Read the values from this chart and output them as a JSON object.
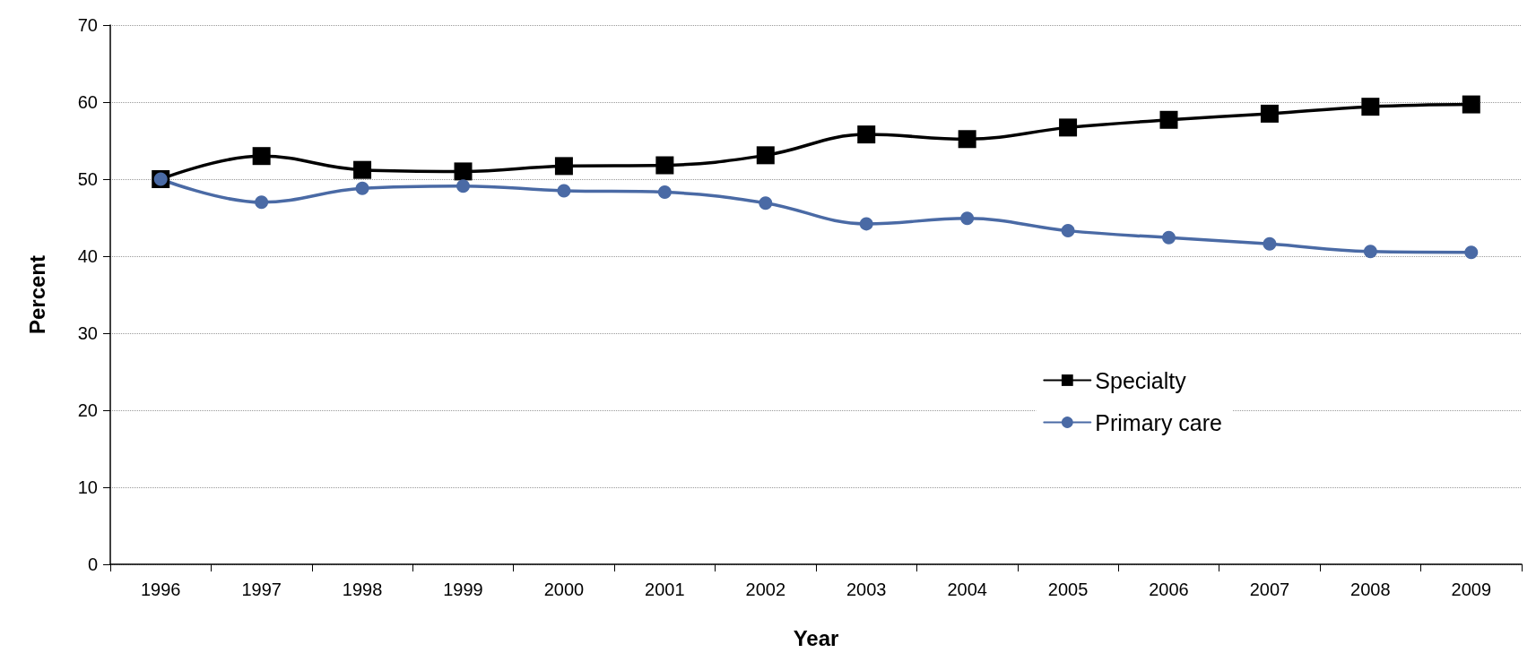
{
  "chart_data": {
    "type": "line",
    "xlabel": "Year",
    "ylabel": "Percent",
    "categories": [
      "1996",
      "1997",
      "1998",
      "1999",
      "2000",
      "2001",
      "2002",
      "2003",
      "2004",
      "2005",
      "2006",
      "2007",
      "2008",
      "2009"
    ],
    "series": [
      {
        "name": "Specialty",
        "color": "#000000",
        "marker": "square",
        "values": [
          50,
          53.0,
          51.2,
          51.0,
          51.7,
          51.8,
          53.1,
          55.8,
          55.2,
          56.7,
          57.7,
          58.5,
          59.4,
          59.7
        ]
      },
      {
        "name": "Primary care",
        "color": "#4a6aa5",
        "marker": "circle",
        "values": [
          50,
          47.0,
          48.8,
          49.1,
          48.5,
          48.3,
          46.9,
          44.2,
          44.9,
          43.3,
          42.4,
          41.6,
          40.6,
          40.5
        ]
      }
    ],
    "ylim": [
      0,
      70
    ],
    "yticks": [
      0,
      10,
      20,
      30,
      40,
      50,
      60,
      70
    ],
    "grid": "y",
    "legend": "right",
    "line_style": "solid"
  }
}
